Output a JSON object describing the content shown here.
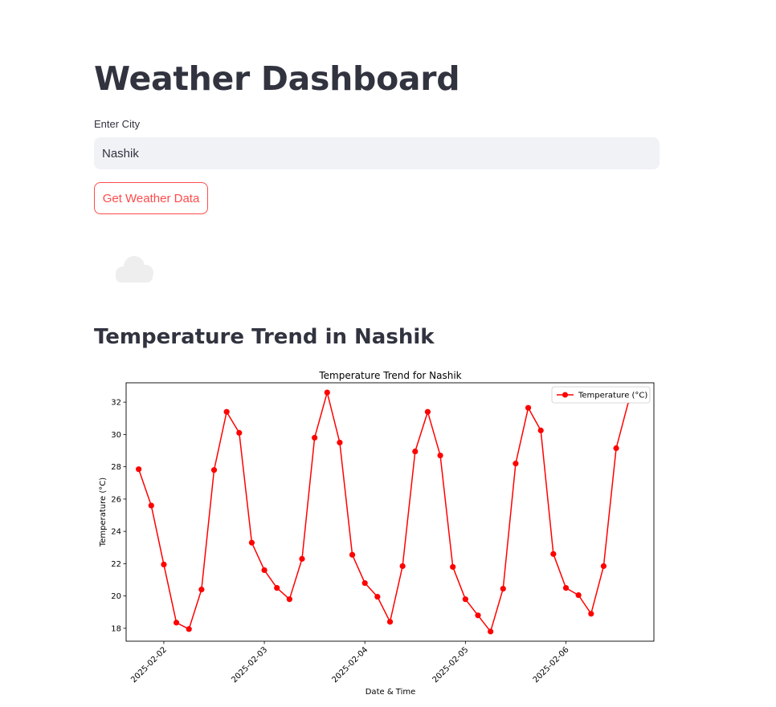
{
  "header": {
    "title": "Weather Dashboard"
  },
  "form": {
    "city_label": "Enter City",
    "city_value": "Nashik",
    "submit_label": "Get Weather Data"
  },
  "weather": {
    "icon": "cloud-icon"
  },
  "section": {
    "trend_title": "Temperature Trend in Nashik"
  },
  "colors": {
    "accent": "#ff4b4b",
    "series": "#ff0000",
    "input_bg": "#f0f2f6",
    "text": "#31333f"
  },
  "chart_data": {
    "type": "line",
    "title": "Temperature Trend for Nashik",
    "xlabel": "Date & Time",
    "ylabel": "Temperature (°C)",
    "xtick_labels": [
      "2025-02-02",
      "2025-02-03",
      "2025-02-04",
      "2025-02-05",
      "2025-02-06"
    ],
    "ytick_labels": [
      "18",
      "20",
      "22",
      "24",
      "26",
      "28",
      "30",
      "32"
    ],
    "ylim": [
      17.2,
      33.2
    ],
    "xlim": [
      "2025-02-01 15:00",
      "2025-02-06 21:00"
    ],
    "grid": false,
    "legend": "top-right",
    "series": [
      {
        "name": "Temperature (°C)",
        "color": "#ff0000",
        "marker": "circle",
        "x": [
          "2025-02-01 18:00",
          "2025-02-01 21:00",
          "2025-02-02 00:00",
          "2025-02-02 03:00",
          "2025-02-02 06:00",
          "2025-02-02 09:00",
          "2025-02-02 12:00",
          "2025-02-02 15:00",
          "2025-02-02 18:00",
          "2025-02-02 21:00",
          "2025-02-03 00:00",
          "2025-02-03 03:00",
          "2025-02-03 06:00",
          "2025-02-03 09:00",
          "2025-02-03 12:00",
          "2025-02-03 15:00",
          "2025-02-03 18:00",
          "2025-02-03 21:00",
          "2025-02-04 00:00",
          "2025-02-04 03:00",
          "2025-02-04 06:00",
          "2025-02-04 09:00",
          "2025-02-04 12:00",
          "2025-02-04 15:00",
          "2025-02-04 18:00",
          "2025-02-04 21:00",
          "2025-02-05 00:00",
          "2025-02-05 03:00",
          "2025-02-05 06:00",
          "2025-02-05 09:00",
          "2025-02-05 12:00",
          "2025-02-05 15:00",
          "2025-02-05 18:00",
          "2025-02-05 21:00",
          "2025-02-06 00:00",
          "2025-02-06 03:00",
          "2025-02-06 06:00",
          "2025-02-06 09:00",
          "2025-02-06 12:00",
          "2025-02-06 15:00"
        ],
        "values": [
          27.85,
          25.6,
          21.95,
          18.35,
          17.95,
          20.4,
          27.8,
          31.4,
          30.1,
          23.3,
          21.6,
          20.5,
          19.8,
          22.3,
          29.8,
          32.6,
          29.5,
          22.55,
          20.8,
          19.95,
          18.4,
          21.85,
          28.95,
          31.4,
          28.7,
          21.8,
          19.8,
          18.8,
          17.8,
          20.45,
          28.2,
          31.65,
          30.25,
          22.6,
          20.5,
          20.05,
          18.9,
          21.85,
          29.15,
          32.1
        ]
      }
    ]
  }
}
